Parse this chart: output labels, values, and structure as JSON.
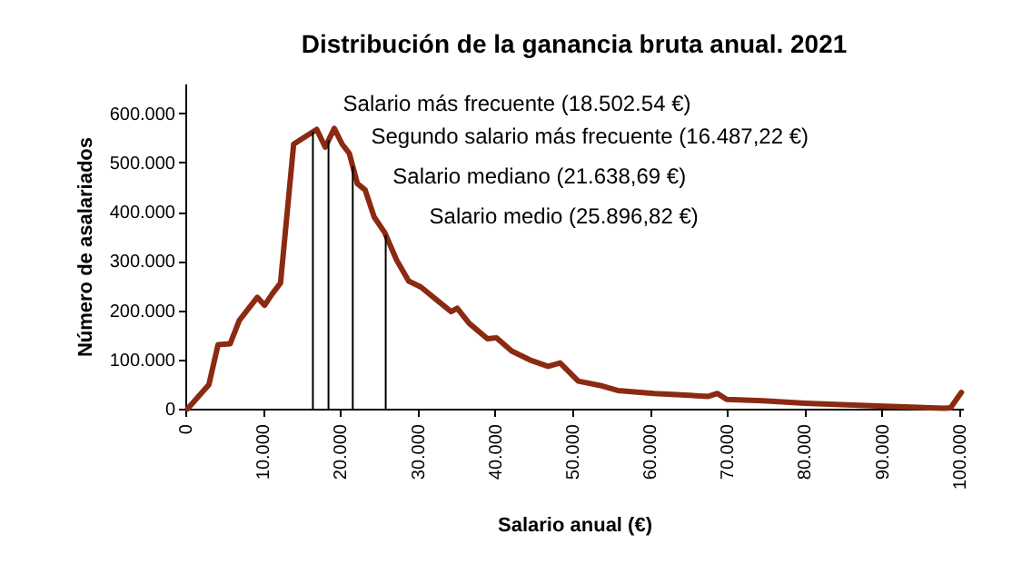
{
  "chart_data": {
    "type": "line",
    "title": "Distribución de la ganancia bruta anual. 2021",
    "xlabel": "Salario anual (€)",
    "ylabel": "Número de asalariados",
    "x": [
      300,
      3050,
      4230,
      5800,
      6970,
      9300,
      10250,
      11270,
      12300,
      14000,
      15180,
      16980,
      18080,
      19250,
      20270,
      21200,
      22230,
      23240,
      24410,
      25750,
      27300,
      28870,
      30440,
      32400,
      34350,
      35140,
      36700,
      39050,
      40220,
      42180,
      44530,
      46880,
      48440,
      50780,
      53920,
      55870,
      60560,
      67600,
      68780,
      69950,
      74650,
      80120,
      88730,
      98120,
      98900,
      100300
    ],
    "series": [
      {
        "color": "#8b2a12",
        "values": [
          0,
          49000,
          130000,
          132000,
          179000,
          226000,
          210000,
          234000,
          255000,
          537000,
          549000,
          567000,
          531000,
          569000,
          537000,
          518000,
          457000,
          444000,
          389000,
          358000,
          302000,
          259000,
          247000,
          222000,
          197000,
          204000,
          173000,
          142000,
          144000,
          117000,
          99000,
          86000,
          93000,
          56000,
          46000,
          37000,
          31000,
          25000,
          31000,
          19000,
          16000,
          11000,
          6000,
          1000,
          2000,
          33000
        ]
      }
    ],
    "xlim": [
      0,
      100500
    ],
    "ylim": [
      0,
      660000
    ],
    "xticks": [
      {
        "value": 0,
        "label": "0"
      },
      {
        "value": 10000,
        "label": "10.000"
      },
      {
        "value": 20000,
        "label": "20.000"
      },
      {
        "value": 30000,
        "label": "30.000"
      },
      {
        "value": 40000,
        "label": "40.000"
      },
      {
        "value": 50000,
        "label": "50.000"
      },
      {
        "value": 60000,
        "label": "60.000"
      },
      {
        "value": 70000,
        "label": "70.000"
      },
      {
        "value": 80000,
        "label": "80.000"
      },
      {
        "value": 90000,
        "label": "90.000"
      },
      {
        "value": 100000,
        "label": "100.000"
      }
    ],
    "yticks": [
      {
        "value": 0,
        "label": "0"
      },
      {
        "value": 100000,
        "label": "100.000"
      },
      {
        "value": 200000,
        "label": "200.000"
      },
      {
        "value": 300000,
        "label": "300.000"
      },
      {
        "value": 400000,
        "label": "400.000"
      },
      {
        "value": 500000,
        "label": "500.000"
      },
      {
        "value": 600000,
        "label": "600.000"
      }
    ],
    "ref_lines": [
      {
        "axis": "x",
        "value": 18502.54,
        "label": "Salario más frecuente (18.502.54 €)",
        "color": "#000000"
      },
      {
        "axis": "x",
        "value": 16487.22,
        "label": "Segundo salario más frecuente (16.487,22 €)",
        "color": "#000000"
      },
      {
        "axis": "x",
        "value": 21638.69,
        "label": "Salario mediano (21.638,69 €)",
        "color": "#000000"
      },
      {
        "axis": "x",
        "value": 25896.82,
        "label": "Salario medio (25.896,82 €)",
        "color": "#000000"
      }
    ],
    "grid": false,
    "marker": "none",
    "line_style": "solid"
  }
}
